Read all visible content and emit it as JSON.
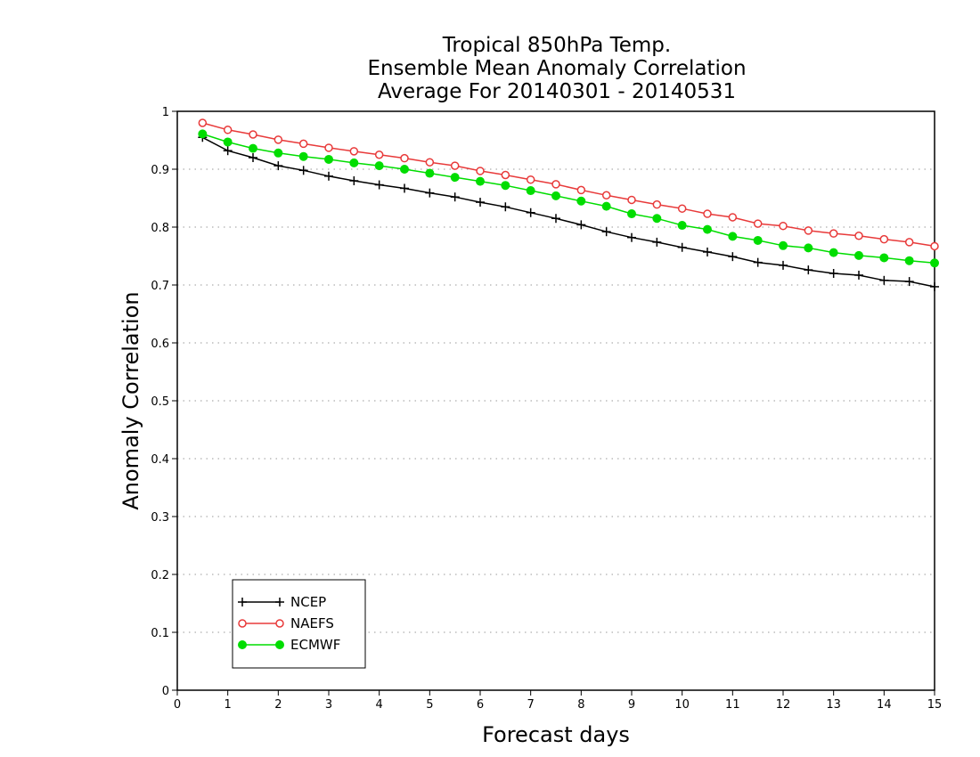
{
  "chart_data": {
    "type": "line",
    "title_lines": [
      "Tropical 850hPa Temp.",
      "Ensemble Mean Anomaly Correlation",
      "Average For 20140301 - 20140531"
    ],
    "xlabel": "Forecast days",
    "ylabel": "Anomaly Correlation",
    "xlim": [
      0,
      15
    ],
    "ylim": [
      0,
      1
    ],
    "x_ticks": [
      "0",
      "1",
      "2",
      "3",
      "4",
      "5",
      "6",
      "7",
      "8",
      "9",
      "10",
      "11",
      "12",
      "13",
      "14",
      "15"
    ],
    "y_ticks": [
      "0",
      "0.1",
      "0.2",
      "0.3",
      "0.4",
      "0.5",
      "0.6",
      "0.7",
      "0.8",
      "0.9",
      "1"
    ],
    "grid": "dotted-horizontal",
    "legend_position": "bottom-left",
    "x": [
      0.5,
      1,
      1.5,
      2,
      2.5,
      3,
      3.5,
      4,
      4.5,
      5,
      5.5,
      6,
      6.5,
      7,
      7.5,
      8,
      8.5,
      9,
      9.5,
      10,
      10.5,
      11,
      11.5,
      12,
      12.5,
      13,
      13.5,
      14,
      14.5,
      15
    ],
    "series": [
      {
        "name": "NCEP",
        "color": "#000000",
        "marker": "plus",
        "values": [
          0.955,
          0.932,
          0.92,
          0.906,
          0.898,
          0.888,
          0.88,
          0.873,
          0.867,
          0.859,
          0.852,
          0.843,
          0.835,
          0.825,
          0.815,
          0.804,
          0.792,
          0.782,
          0.774,
          0.765,
          0.757,
          0.749,
          0.739,
          0.734,
          0.726,
          0.72,
          0.717,
          0.708,
          0.706,
          0.697
        ]
      },
      {
        "name": "NAEFS",
        "color": "#e83a3a",
        "marker": "open-circle",
        "values": [
          0.98,
          0.968,
          0.96,
          0.951,
          0.944,
          0.937,
          0.931,
          0.925,
          0.919,
          0.912,
          0.906,
          0.897,
          0.89,
          0.882,
          0.874,
          0.864,
          0.855,
          0.847,
          0.839,
          0.832,
          0.823,
          0.817,
          0.806,
          0.802,
          0.794,
          0.789,
          0.785,
          0.779,
          0.774,
          0.767
        ]
      },
      {
        "name": "ECMWF",
        "color": "#00dd00",
        "marker": "filled-circle",
        "values": [
          0.961,
          0.947,
          0.936,
          0.928,
          0.922,
          0.917,
          0.911,
          0.906,
          0.9,
          0.893,
          0.886,
          0.879,
          0.872,
          0.863,
          0.854,
          0.845,
          0.836,
          0.823,
          0.815,
          0.803,
          0.796,
          0.784,
          0.777,
          0.768,
          0.764,
          0.756,
          0.751,
          0.747,
          0.742,
          0.738
        ]
      }
    ]
  }
}
